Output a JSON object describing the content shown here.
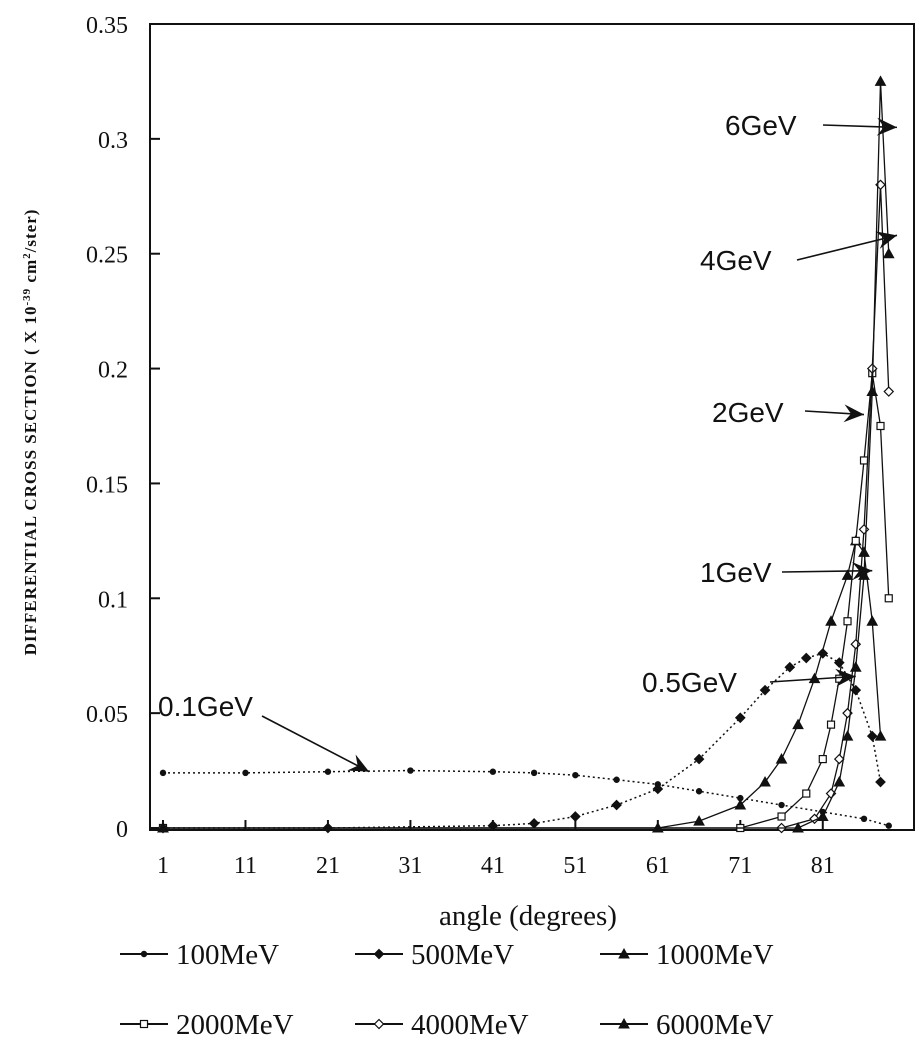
{
  "chart_data": {
    "type": "line",
    "xlabel": "angle (degrees)",
    "ylabel": "DIFFERENTIAL CROSS SECTION ( X 10",
    "ylabel_exp1": "-39",
    "ylabel_mid": " cm",
    "ylabel_exp2": "2",
    "ylabel_end": "/ster)",
    "xlim": [
      1,
      90
    ],
    "ylim": [
      0,
      0.35
    ],
    "x_ticks": [
      1,
      11,
      21,
      31,
      41,
      51,
      61,
      71,
      81
    ],
    "x_tick_labels": [
      "1",
      "11",
      "21",
      "31",
      "41",
      "51",
      "61",
      "71",
      "81"
    ],
    "y_ticks": [
      0,
      0.05,
      0.1,
      0.15,
      0.2,
      0.25,
      0.3,
      0.35
    ],
    "y_tick_labels": [
      "0",
      "0.05",
      "0.1",
      "0.15",
      "0.2",
      "0.25",
      "0.3",
      "0.35"
    ],
    "grid": false,
    "legend_position": "bottom",
    "series": [
      {
        "name": "100MeV",
        "marker": "dot",
        "annotation": "0.1GeV",
        "x": [
          1,
          11,
          21,
          31,
          41,
          46,
          51,
          56,
          61,
          66,
          71,
          76,
          81,
          86,
          89
        ],
        "y": [
          0.024,
          0.024,
          0.0245,
          0.025,
          0.0245,
          0.024,
          0.023,
          0.021,
          0.019,
          0.016,
          0.013,
          0.01,
          0.007,
          0.004,
          0.001
        ]
      },
      {
        "name": "500MeV",
        "marker": "diamond-filled",
        "annotation": "0.5GeV",
        "x": [
          1,
          21,
          41,
          46,
          51,
          56,
          61,
          66,
          71,
          74,
          77,
          79,
          81,
          83,
          85,
          87,
          88
        ],
        "y": [
          0,
          0,
          0.001,
          0.002,
          0.005,
          0.01,
          0.017,
          0.03,
          0.048,
          0.06,
          0.07,
          0.074,
          0.076,
          0.072,
          0.06,
          0.04,
          0.02
        ]
      },
      {
        "name": "1000MeV",
        "marker": "triangle",
        "annotation": "1GeV",
        "x": [
          1,
          61,
          66,
          71,
          74,
          76,
          78,
          80,
          82,
          84,
          85,
          86,
          87,
          88
        ],
        "y": [
          0,
          0,
          0.003,
          0.01,
          0.02,
          0.03,
          0.045,
          0.065,
          0.09,
          0.11,
          0.125,
          0.12,
          0.09,
          0.04
        ]
      },
      {
        "name": "2000MeV",
        "marker": "square",
        "annotation": "2GeV",
        "x": [
          1,
          71,
          76,
          79,
          81,
          82,
          83,
          84,
          85,
          86,
          87,
          88,
          89
        ],
        "y": [
          0,
          0,
          0.005,
          0.015,
          0.03,
          0.045,
          0.065,
          0.09,
          0.125,
          0.16,
          0.198,
          0.175,
          0.1
        ]
      },
      {
        "name": "4000MeV",
        "marker": "diamond",
        "annotation": "4GeV",
        "x": [
          1,
          76,
          80,
          82,
          83,
          84,
          85,
          86,
          87,
          88,
          89
        ],
        "y": [
          0,
          0,
          0.004,
          0.015,
          0.03,
          0.05,
          0.08,
          0.13,
          0.2,
          0.28,
          0.19
        ]
      },
      {
        "name": "6000MeV",
        "marker": "triangle",
        "annotation": "6GeV",
        "x": [
          1,
          78,
          81,
          83,
          84,
          85,
          86,
          87,
          88,
          89
        ],
        "y": [
          0,
          0,
          0.005,
          0.02,
          0.04,
          0.07,
          0.11,
          0.19,
          0.325,
          0.25
        ]
      }
    ]
  }
}
